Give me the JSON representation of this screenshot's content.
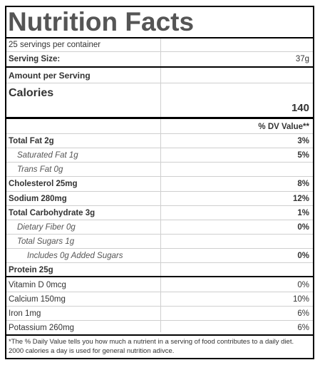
{
  "title": "Nutrition Facts",
  "servings_per_container": "25 servings per container",
  "serving_size": {
    "label": "Serving Size:",
    "value": "37g"
  },
  "amount_per_serving": "Amount per Serving",
  "calories": {
    "label": "Calories",
    "value": "140"
  },
  "dv_header": "% DV Value**",
  "nutrients": [
    {
      "name": "Total Fat 2g",
      "dv": "3%"
    },
    {
      "name": "Saturated Fat 1g",
      "dv": "5%"
    },
    {
      "name": "Trans Fat 0g",
      "dv": ""
    },
    {
      "name": "Cholesterol 25mg",
      "dv": "8%"
    },
    {
      "name": "Sodium 280mg",
      "dv": "12%"
    },
    {
      "name": "Total Carbohydrate 3g",
      "dv": "1%"
    },
    {
      "name": "Dietary Fiber 0g",
      "dv": "0%"
    },
    {
      "name": "Total Sugars 1g",
      "dv": ""
    },
    {
      "name": "Includes 0g Added Sugars",
      "dv": "0%"
    },
    {
      "name": "Protein 25g",
      "dv": ""
    }
  ],
  "vitamins": [
    {
      "name": "Vitamin D 0mcg",
      "dv": "0%"
    },
    {
      "name": "Calcium 150mg",
      "dv": "10%"
    },
    {
      "name": "Iron 1mg",
      "dv": "6%"
    },
    {
      "name": "Potassium 260mg",
      "dv": "6%"
    }
  ],
  "footnote": "*The % Daily Value tells you how much a nutrient in a serving of food contributes to a daily diet. 2000 calories a day is used for general nutrition adivce."
}
